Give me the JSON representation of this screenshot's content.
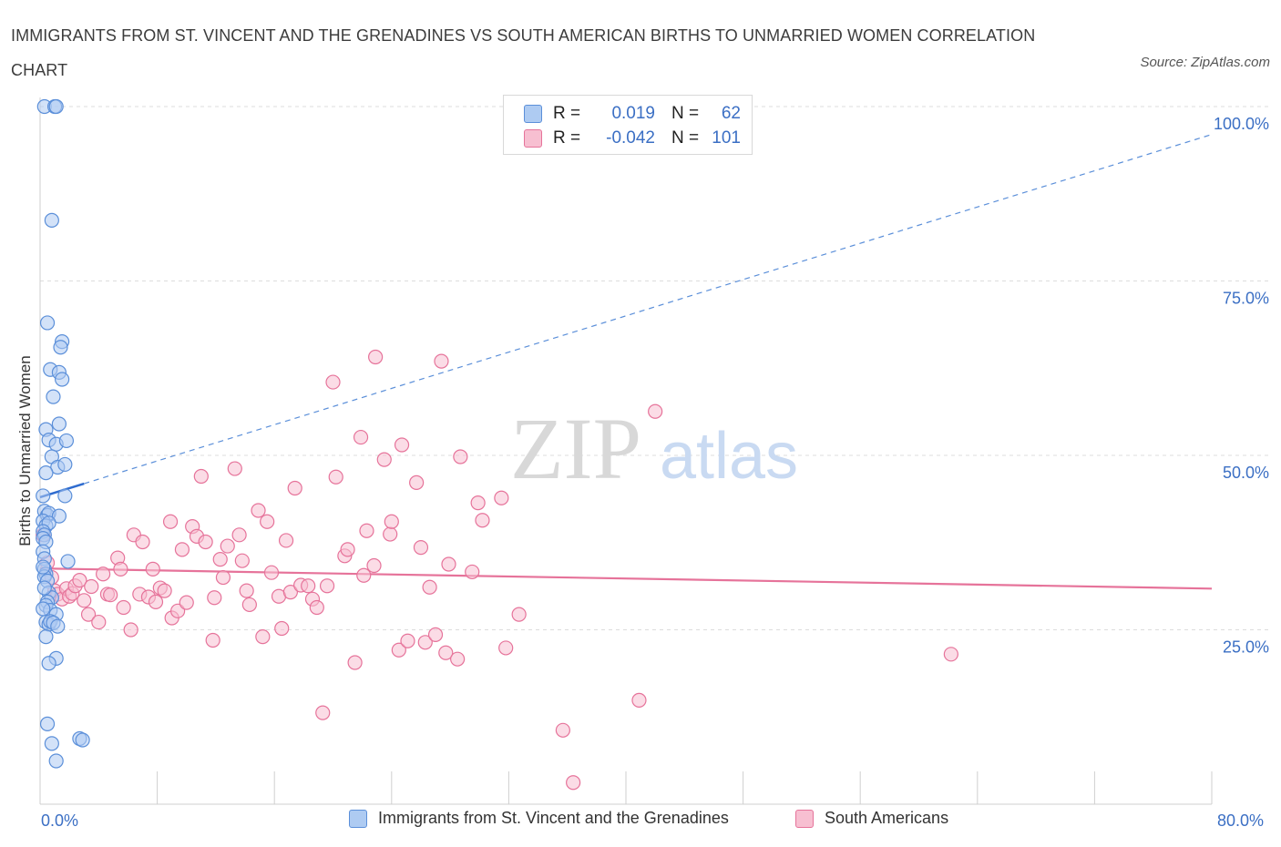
{
  "title": "IMMIGRANTS FROM ST. VINCENT AND THE GRENADINES VS SOUTH AMERICAN BIRTHS TO UNMARRIED WOMEN CORRELATION CHART",
  "source": "Source: ZipAtlas.com",
  "watermark": {
    "zip": "ZIP",
    "atlas": "atlas"
  },
  "legend": {
    "rows": [
      {
        "r_label": "R =",
        "r_value": "0.019",
        "n_label": "N =",
        "n_value": "62"
      },
      {
        "r_label": "R =",
        "r_value": "-0.042",
        "n_label": "N =",
        "n_value": "101"
      }
    ]
  },
  "bottom_legend": {
    "series1": "Immigrants from St. Vincent and the Grenadines",
    "series2": "South Americans"
  },
  "colors": {
    "blue": "#5b8fd9",
    "blue_fill": "#aecbf2",
    "pink": "#e6739a",
    "pink_fill": "#f7bfd1",
    "axis_text": "#3b6fc4",
    "grid": "#dcdcdc"
  },
  "chart_data": {
    "type": "scatter",
    "title": "IMMIGRANTS FROM ST. VINCENT AND THE GRENADINES VS SOUTH AMERICAN BIRTHS TO UNMARRIED WOMEN CORRELATION CHART",
    "xlabel": "",
    "ylabel": "Births to Unmarried Women",
    "xlim": [
      0,
      80
    ],
    "ylim": [
      0,
      100
    ],
    "x_tick_labels": [
      "0.0%",
      "80.0%"
    ],
    "y_tick_labels": [
      "25.0%",
      "50.0%",
      "75.0%",
      "100.0%"
    ],
    "y_ticks": [
      25,
      50,
      75,
      100
    ],
    "grid": true,
    "legend_position": "top-center",
    "series": [
      {
        "name": "Immigrants from St. Vincent and the Grenadines",
        "color": "#5b8fd9",
        "trend": {
          "x": [
            0,
            80
          ],
          "y": [
            44.0,
            96.0
          ],
          "solid_until_x": 3.0
        },
        "points": [
          [
            0.3,
            100
          ],
          [
            1.0,
            100
          ],
          [
            1.1,
            100
          ],
          [
            0.8,
            83.7
          ],
          [
            0.5,
            69
          ],
          [
            1.5,
            66.3
          ],
          [
            1.4,
            65.5
          ],
          [
            0.7,
            62.3
          ],
          [
            1.3,
            61.9
          ],
          [
            1.5,
            60.9
          ],
          [
            0.9,
            58.4
          ],
          [
            0.4,
            53.7
          ],
          [
            1.3,
            54.5
          ],
          [
            0.6,
            52.2
          ],
          [
            1.1,
            51.6
          ],
          [
            1.8,
            52.1
          ],
          [
            0.8,
            49.8
          ],
          [
            1.2,
            48.3
          ],
          [
            1.7,
            48.7
          ],
          [
            0.4,
            47.5
          ],
          [
            0.2,
            44.2
          ],
          [
            1.7,
            44.2
          ],
          [
            0.3,
            42.0
          ],
          [
            0.5,
            41.4
          ],
          [
            0.6,
            41.7
          ],
          [
            1.3,
            41.3
          ],
          [
            0.2,
            40.6
          ],
          [
            0.4,
            39.9
          ],
          [
            0.6,
            40.3
          ],
          [
            0.2,
            39.1
          ],
          [
            0.3,
            38.6
          ],
          [
            0.2,
            38.1
          ],
          [
            0.4,
            37.6
          ],
          [
            0.2,
            36.2
          ],
          [
            0.3,
            35.2
          ],
          [
            1.9,
            34.8
          ],
          [
            0.3,
            33.7
          ],
          [
            0.4,
            33.0
          ],
          [
            0.3,
            32.6
          ],
          [
            0.5,
            32.0
          ],
          [
            0.6,
            30.3
          ],
          [
            0.8,
            29.6
          ],
          [
            0.5,
            29.0
          ],
          [
            0.4,
            28.5
          ],
          [
            0.7,
            27.8
          ],
          [
            1.1,
            27.2
          ],
          [
            0.4,
            26.1
          ],
          [
            0.6,
            25.8
          ],
          [
            0.7,
            26.2
          ],
          [
            0.9,
            26.0
          ],
          [
            1.2,
            25.5
          ],
          [
            1.1,
            20.9
          ],
          [
            0.6,
            20.2
          ],
          [
            0.5,
            11.5
          ],
          [
            0.8,
            8.7
          ],
          [
            2.7,
            9.4
          ],
          [
            2.9,
            9.2
          ],
          [
            1.1,
            6.2
          ],
          [
            0.2,
            34.0
          ],
          [
            0.3,
            31.0
          ],
          [
            0.2,
            28.0
          ],
          [
            0.4,
            24.0
          ]
        ]
      },
      {
        "name": "South Americans",
        "color": "#e6739a",
        "trend": {
          "x": [
            0,
            80
          ],
          "y": [
            33.8,
            30.9
          ]
        },
        "points": [
          [
            0.2,
            38.6
          ],
          [
            0.5,
            34.6
          ],
          [
            0.8,
            32.5
          ],
          [
            1.0,
            30.6
          ],
          [
            1.2,
            30.1
          ],
          [
            1.5,
            29.4
          ],
          [
            1.8,
            30.9
          ],
          [
            2.0,
            29.8
          ],
          [
            2.2,
            30.2
          ],
          [
            2.4,
            31.3
          ],
          [
            2.7,
            32.1
          ],
          [
            3.0,
            29.2
          ],
          [
            3.3,
            27.2
          ],
          [
            3.5,
            31.2
          ],
          [
            4.0,
            26.1
          ],
          [
            4.3,
            33.0
          ],
          [
            4.6,
            30.1
          ],
          [
            4.8,
            30.0
          ],
          [
            5.3,
            35.3
          ],
          [
            5.5,
            33.7
          ],
          [
            5.7,
            28.2
          ],
          [
            6.2,
            25.0
          ],
          [
            6.4,
            38.6
          ],
          [
            6.8,
            30.1
          ],
          [
            7.0,
            37.6
          ],
          [
            7.4,
            29.7
          ],
          [
            7.7,
            33.7
          ],
          [
            7.9,
            29.0
          ],
          [
            8.2,
            31.0
          ],
          [
            8.5,
            30.6
          ],
          [
            8.9,
            40.5
          ],
          [
            9.0,
            26.7
          ],
          [
            9.4,
            27.7
          ],
          [
            9.7,
            36.5
          ],
          [
            10.0,
            28.9
          ],
          [
            10.4,
            39.8
          ],
          [
            10.7,
            38.4
          ],
          [
            11.0,
            47.0
          ],
          [
            11.3,
            37.6
          ],
          [
            11.8,
            23.5
          ],
          [
            11.9,
            29.6
          ],
          [
            12.3,
            35.1
          ],
          [
            12.5,
            32.5
          ],
          [
            12.8,
            37.0
          ],
          [
            13.3,
            48.1
          ],
          [
            13.6,
            38.6
          ],
          [
            13.8,
            34.9
          ],
          [
            14.1,
            30.6
          ],
          [
            14.3,
            28.6
          ],
          [
            14.9,
            42.1
          ],
          [
            15.2,
            24.0
          ],
          [
            15.5,
            40.5
          ],
          [
            15.8,
            33.2
          ],
          [
            16.3,
            29.8
          ],
          [
            16.5,
            25.2
          ],
          [
            16.8,
            37.8
          ],
          [
            17.1,
            30.4
          ],
          [
            17.4,
            45.3
          ],
          [
            17.8,
            31.4
          ],
          [
            18.3,
            31.3
          ],
          [
            18.6,
            29.4
          ],
          [
            18.9,
            28.2
          ],
          [
            19.3,
            13.1
          ],
          [
            19.6,
            31.3
          ],
          [
            20.0,
            60.5
          ],
          [
            20.2,
            46.9
          ],
          [
            20.8,
            35.6
          ],
          [
            21.0,
            36.5
          ],
          [
            21.5,
            20.3
          ],
          [
            21.9,
            52.6
          ],
          [
            22.1,
            32.8
          ],
          [
            22.3,
            39.2
          ],
          [
            22.8,
            34.2
          ],
          [
            22.9,
            64.1
          ],
          [
            23.5,
            49.4
          ],
          [
            23.9,
            38.7
          ],
          [
            24.0,
            40.5
          ],
          [
            24.5,
            22.1
          ],
          [
            24.7,
            51.5
          ],
          [
            25.1,
            23.4
          ],
          [
            25.7,
            46.1
          ],
          [
            26.0,
            36.8
          ],
          [
            26.3,
            23.2
          ],
          [
            26.6,
            31.1
          ],
          [
            27.0,
            24.3
          ],
          [
            27.4,
            63.5
          ],
          [
            27.7,
            21.7
          ],
          [
            27.9,
            34.4
          ],
          [
            28.5,
            20.8
          ],
          [
            28.7,
            49.8
          ],
          [
            29.5,
            33.3
          ],
          [
            29.9,
            43.2
          ],
          [
            30.2,
            40.7
          ],
          [
            31.5,
            43.9
          ],
          [
            31.8,
            22.4
          ],
          [
            32.7,
            27.2
          ],
          [
            35.7,
            10.6
          ],
          [
            36.4,
            3.1
          ],
          [
            40.9,
            14.9
          ],
          [
            42.0,
            56.3
          ],
          [
            62.2,
            21.5
          ]
        ]
      }
    ]
  }
}
